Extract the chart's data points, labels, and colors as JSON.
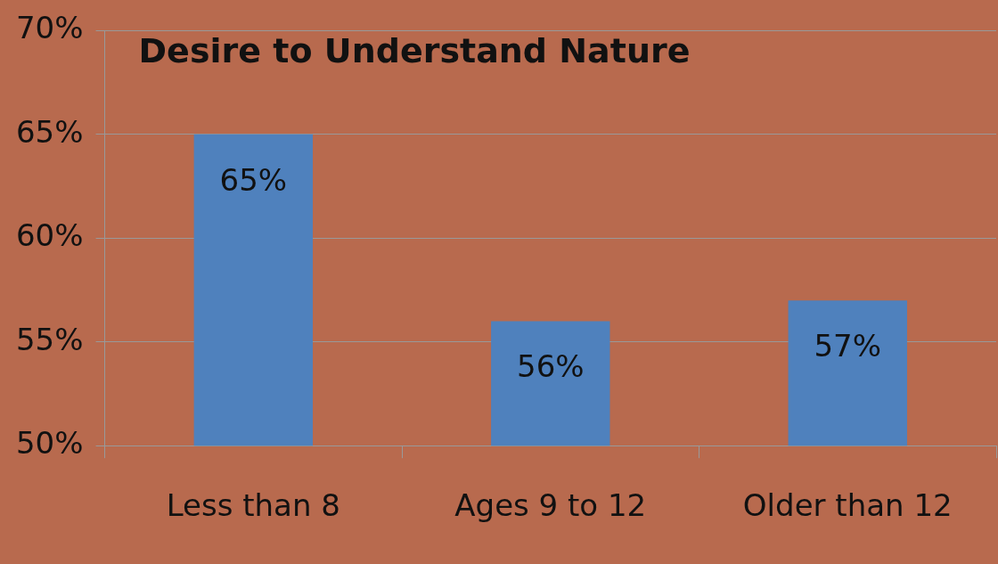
{
  "chart_data": {
    "type": "bar",
    "title": "Desire to Understand Nature",
    "categories": [
      "Less than 8",
      "Ages 9 to 12",
      "Older than 12"
    ],
    "values": [
      65,
      56,
      57
    ],
    "color": "#4f81bd",
    "ylim": [
      50,
      70
    ],
    "yticks": [
      {
        "value": 50,
        "label": "50%"
      },
      {
        "value": 55,
        "label": "55%"
      },
      {
        "value": 60,
        "label": "60%"
      },
      {
        "value": 65,
        "label": "65%"
      },
      {
        "value": 70,
        "label": "70%"
      }
    ],
    "value_labels": [
      "65%",
      "56%",
      "57%"
    ],
    "grid": "y",
    "legend": false
  }
}
